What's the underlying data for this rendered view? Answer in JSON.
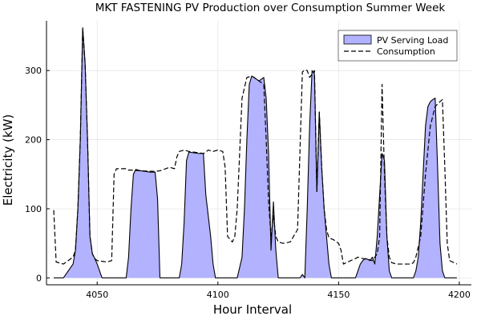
{
  "chart_data": {
    "type": "area",
    "title": "MKT FASTENING PV Production over Consumption Summer Week",
    "xlabel": "Hour Interval",
    "ylabel": "Electricity (kW)",
    "xlim": [
      4029,
      4205
    ],
    "ylim": [
      -10,
      372
    ],
    "xticks": [
      4050,
      4100,
      4150,
      4200
    ],
    "yticks": [
      0,
      100,
      200,
      300
    ],
    "grid": true,
    "legend_position": "top-right",
    "colors": {
      "pv_fill": "#b2b2ff",
      "pv_line": "#000000",
      "consumption": "#000000"
    },
    "series": [
      {
        "name": "PV Serving Load",
        "style": "filled-area",
        "x": [
          4032,
          4036,
          4038,
          4040,
          4041,
          4042,
          4043,
          4044,
          4045,
          4046,
          4047,
          4048,
          4049,
          4050,
          4051,
          4052,
          4062,
          4063,
          4064,
          4065,
          4066,
          4067,
          4068,
          4070,
          4072,
          4074,
          4075,
          4076,
          4084,
          4085,
          4086,
          4087,
          4088,
          4090,
          4092,
          4094,
          4095,
          4096,
          4097,
          4098,
          4099,
          4108,
          4110,
          4111,
          4112,
          4113,
          4114,
          4115,
          4117,
          4119,
          4120,
          4121,
          4122,
          4123,
          4124,
          4125,
          4134,
          4135,
          4136,
          4137,
          4138,
          4139,
          4140,
          4141,
          4142,
          4143,
          4144,
          4145,
          4146,
          4147,
          4148,
          4149,
          4157,
          4158,
          4159,
          4160,
          4161,
          4162,
          4163,
          4164,
          4165,
          4166,
          4167,
          4168,
          4169,
          4170,
          4171,
          4172,
          4181,
          4182,
          4183,
          4184,
          4185,
          4186,
          4187,
          4188,
          4189,
          4190,
          4191,
          4192,
          4193,
          4194,
          4195,
          4199
        ],
        "values": [
          0,
          0,
          10,
          20,
          40,
          100,
          200,
          362,
          310,
          200,
          60,
          35,
          28,
          20,
          10,
          0,
          0,
          30,
          100,
          150,
          157,
          156,
          155,
          154,
          153,
          153,
          115,
          0,
          0,
          20,
          80,
          170,
          182,
          181,
          180,
          180,
          120,
          90,
          60,
          20,
          0,
          0,
          30,
          100,
          200,
          280,
          292,
          290,
          285,
          290,
          260,
          180,
          40,
          110,
          40,
          0,
          0,
          5,
          0,
          100,
          220,
          300,
          295,
          125,
          240,
          160,
          100,
          60,
          20,
          0,
          0,
          0,
          0,
          10,
          20,
          25,
          28,
          27,
          25,
          30,
          20,
          60,
          120,
          180,
          170,
          60,
          10,
          0,
          0,
          10,
          30,
          80,
          150,
          220,
          248,
          255,
          258,
          260,
          160,
          50,
          10,
          0,
          0,
          0
        ]
      },
      {
        "name": "Consumption",
        "style": "dashed-line",
        "x": [
          4032,
          4033,
          4036,
          4038,
          4040,
          4041,
          4042,
          4043,
          4044,
          4045,
          4046,
          4047,
          4048,
          4049,
          4050,
          4052,
          4054,
          4056,
          4057,
          4058,
          4062,
          4063,
          4064,
          4068,
          4074,
          4076,
          4080,
          4082,
          4083,
          4084,
          4086,
          4088,
          4090,
          4092,
          4094,
          4095,
          4096,
          4098,
          4100,
          4102,
          4103,
          4104,
          4106,
          4107,
          4108,
          4110,
          4112,
          4114,
          4115,
          4117,
          4119,
          4120,
          4121,
          4122,
          4123,
          4124,
          4125,
          4127,
          4130,
          4133,
          4135,
          4136,
          4137,
          4138,
          4140,
          4141,
          4142,
          4143,
          4144,
          4145,
          4146,
          4148,
          4150,
          4151,
          4152,
          4155,
          4157,
          4158,
          4160,
          4162,
          4164,
          4165,
          4166,
          4167,
          4168,
          4169,
          4170,
          4171,
          4172,
          4174,
          4178,
          4180,
          4181,
          4182,
          4184,
          4186,
          4188,
          4190,
          4192,
          4193,
          4194,
          4195,
          4196,
          4199
        ],
        "values": [
          98,
          23,
          20,
          25,
          30,
          40,
          100,
          200,
          362,
          310,
          200,
          60,
          35,
          28,
          25,
          24,
          23,
          25,
          150,
          158,
          158,
          156,
          156,
          155,
          154,
          155,
          160,
          158,
          175,
          183,
          185,
          183,
          182,
          181,
          180,
          182,
          185,
          183,
          185,
          183,
          160,
          60,
          52,
          60,
          100,
          260,
          290,
          292,
          290,
          285,
          280,
          200,
          110,
          60,
          90,
          60,
          52,
          50,
          52,
          70,
          298,
          301,
          300,
          290,
          300,
          125,
          240,
          160,
          100,
          70,
          58,
          55,
          50,
          40,
          20,
          25,
          28,
          30,
          28,
          27,
          25,
          30,
          35,
          60,
          280,
          150,
          60,
          30,
          22,
          20,
          20,
          20,
          22,
          30,
          60,
          150,
          220,
          248,
          255,
          258,
          160,
          50,
          25,
          20
        ]
      }
    ]
  }
}
